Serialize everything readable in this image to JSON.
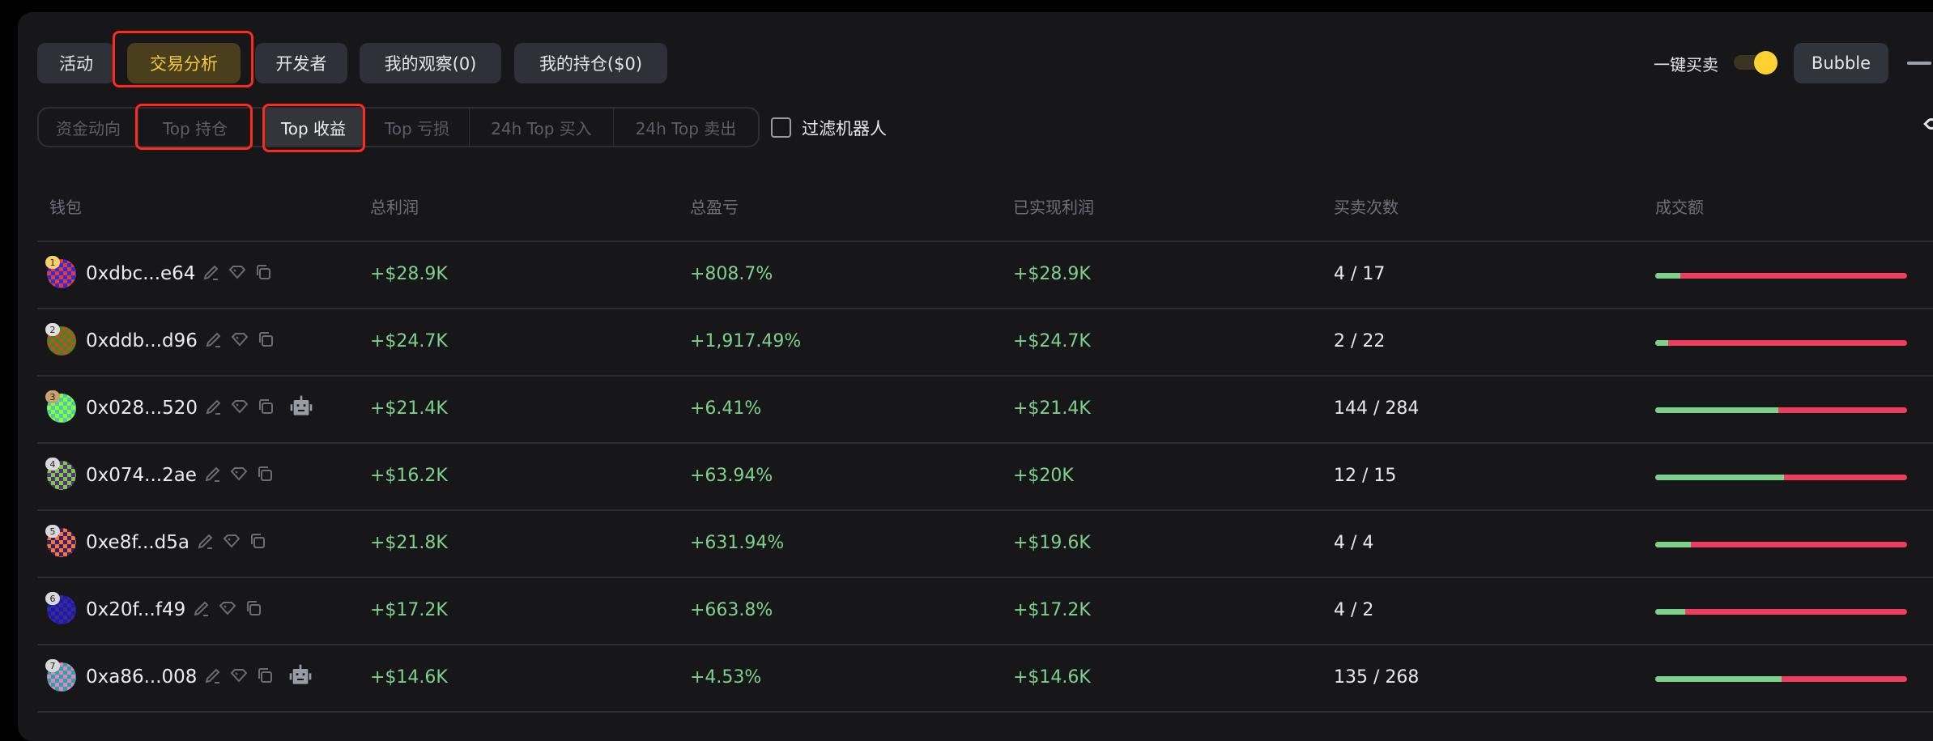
{
  "tabs": [
    {
      "label": "活动",
      "active": false
    },
    {
      "label": "交易分析",
      "active": true
    },
    {
      "label": "开发者",
      "active": false
    },
    {
      "label": "我的观察(0)",
      "active": false
    },
    {
      "label": "我的持仓($0)",
      "active": false
    }
  ],
  "subtabs": [
    {
      "label": "资金动向",
      "active": false
    },
    {
      "label": "Top 持仓",
      "active": false
    },
    {
      "label": "Top 收益",
      "active": true
    },
    {
      "label": "Top 亏损",
      "active": false
    },
    {
      "label": "24h Top 买入",
      "active": false
    },
    {
      "label": "24h Top 卖出",
      "active": false
    }
  ],
  "filter_bots": {
    "label": "过滤机器人",
    "checked": false
  },
  "quick_trade": {
    "label": "一键买卖",
    "enabled": true
  },
  "bubble_label": "Bubble",
  "columns": [
    "钱包",
    "总利润",
    "总盈亏",
    "已实现利润",
    "买卖次数",
    "成交额"
  ],
  "colors": {
    "positive": "#7ed18b",
    "negative": "#ef3d5e",
    "accent": "#f5c93a",
    "annotation": "#ff2a1a"
  },
  "rows": [
    {
      "rank": "1",
      "wallet": "0xdbc...e64",
      "profit": "+$28.9K",
      "pnl": "+808.7%",
      "realized": "+$28.9K",
      "trades": "4 / 17",
      "buy_ratio": 0.1,
      "bot": false,
      "avatar": [
        "#e83a2e",
        "#2a2ee0"
      ],
      "badge": "#f6d36a"
    },
    {
      "rank": "2",
      "wallet": "0xddb...d96",
      "profit": "+$24.7K",
      "pnl": "+1,917.49%",
      "realized": "+$24.7K",
      "trades": "2 / 22",
      "buy_ratio": 0.05,
      "bot": false,
      "avatar": [
        "#3a8a2c",
        "#c0501e"
      ],
      "badge": "#e0e0e0"
    },
    {
      "rank": "3",
      "wallet": "0x028...520",
      "profit": "+$21.4K",
      "pnl": "+6.41%",
      "realized": "+$21.4K",
      "trades": "144 / 284",
      "buy_ratio": 0.49,
      "bot": true,
      "avatar": [
        "#9ef52a",
        "#3ccfc0"
      ],
      "badge": "#c9a06e"
    },
    {
      "rank": "4",
      "wallet": "0x074...2ae",
      "profit": "+$16.2K",
      "pnl": "+63.94%",
      "realized": "+$20K",
      "trades": "12 / 15",
      "buy_ratio": 0.51,
      "bot": false,
      "avatar": [
        "#5a2a9a",
        "#7ad02a"
      ],
      "badge": "#d8d8d8"
    },
    {
      "rank": "5",
      "wallet": "0xe8f...d5a",
      "profit": "+$21.8K",
      "pnl": "+631.94%",
      "realized": "+$19.6K",
      "trades": "4 / 4",
      "buy_ratio": 0.14,
      "bot": false,
      "avatar": [
        "#3a1a7a",
        "#f07a2a"
      ],
      "badge": "#d8d8d8"
    },
    {
      "rank": "6",
      "wallet": "0x20f...f49",
      "profit": "+$17.2K",
      "pnl": "+663.8%",
      "realized": "+$17.2K",
      "trades": "4 / 2",
      "buy_ratio": 0.12,
      "bot": false,
      "avatar": [
        "#3b2a8a",
        "#1a1ab0"
      ],
      "badge": "#d8d8d8"
    },
    {
      "rank": "7",
      "wallet": "0xa86...008",
      "profit": "+$14.6K",
      "pnl": "+4.53%",
      "realized": "+$14.6K",
      "trades": "135 / 268",
      "buy_ratio": 0.5,
      "bot": true,
      "avatar": [
        "#ea7ae0",
        "#1fb08a"
      ],
      "badge": "#d8d8d8"
    }
  ]
}
